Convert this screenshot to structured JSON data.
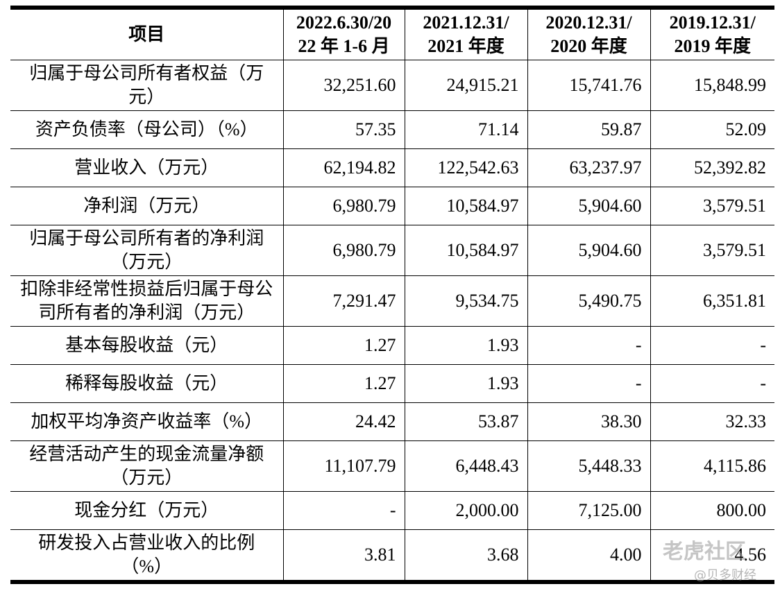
{
  "table": {
    "header": [
      "项目",
      [
        "2022.6.30/20",
        "22 年 1-6 月"
      ],
      [
        "2021.12.31/",
        "2021 年度"
      ],
      [
        "2020.12.31/",
        "2020 年度"
      ],
      [
        "2019.12.31/",
        "2019 年度"
      ]
    ],
    "rows": [
      [
        "归属于母公司所有者权益（万元）",
        "32,251.60",
        "24,915.21",
        "15,741.76",
        "15,848.99"
      ],
      [
        "资产负债率（母公司）（%）",
        "57.35",
        "71.14",
        "59.87",
        "52.09"
      ],
      [
        "营业收入（万元）",
        "62,194.82",
        "122,542.63",
        "63,237.97",
        "52,392.82"
      ],
      [
        "净利润（万元）",
        "6,980.79",
        "10,584.97",
        "5,904.60",
        "3,579.51"
      ],
      [
        "归属于母公司所有者的净利润（万元）",
        "6,980.79",
        "10,584.97",
        "5,904.60",
        "3,579.51"
      ],
      [
        "扣除非经常性损益后归属于母公司所有者的净利润（万元）",
        "7,291.47",
        "9,534.75",
        "5,490.75",
        "6,351.81"
      ],
      [
        "基本每股收益（元）",
        "1.27",
        "1.93",
        "-",
        "-"
      ],
      [
        "稀释每股收益（元）",
        "1.27",
        "1.93",
        "-",
        "-"
      ],
      [
        "加权平均净资产收益率（%）",
        "24.42",
        "53.87",
        "38.30",
        "32.33"
      ],
      [
        "经营活动产生的现金流量净额（万元）",
        "11,107.79",
        "6,448.43",
        "5,448.33",
        "4,115.86"
      ],
      [
        "现金分红（万元）",
        "-",
        "2,000.00",
        "7,125.00",
        "800.00"
      ],
      [
        "研发投入占营业收入的比例（%）",
        "3.81",
        "3.68",
        "4.00",
        "4.56"
      ]
    ]
  },
  "watermark": {
    "brand": "老虎社区",
    "source": "@贝多财经"
  }
}
